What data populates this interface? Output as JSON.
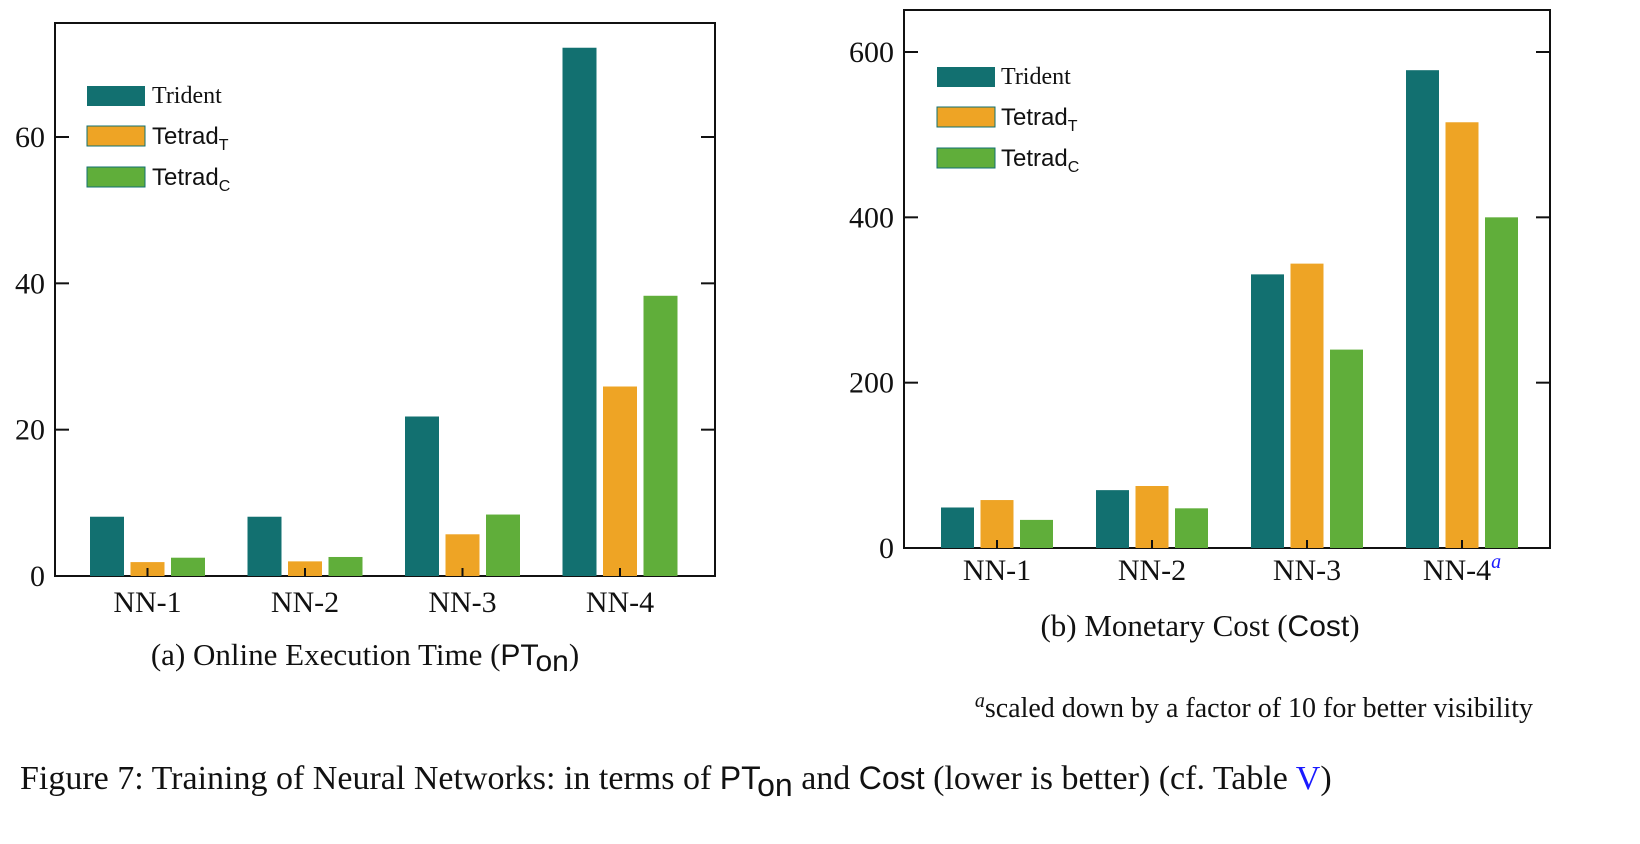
{
  "colors": {
    "Trident": "#127070",
    "TetradT": "#eea425",
    "TetradC": "#60ae3a"
  },
  "chart_data": [
    {
      "type": "bar",
      "categories": [
        "NN-1",
        "NN-2",
        "NN-3",
        "NN-4"
      ],
      "series": [
        {
          "name": "Trident",
          "values": [
            8.1,
            8.1,
            21.8,
            72.2
          ]
        },
        {
          "name": "Tetrad_T",
          "values": [
            1.9,
            2.0,
            5.7,
            25.9
          ]
        },
        {
          "name": "Tetrad_C",
          "values": [
            2.5,
            2.6,
            8.4,
            38.3
          ]
        }
      ],
      "yticks": [
        0,
        20,
        40,
        60
      ],
      "ylim": [
        0,
        75
      ],
      "grid": false,
      "legend": "top-left",
      "caption_prefix": "(a) Online Execution Time (",
      "caption_math": "PT",
      "caption_sub": "on",
      "caption_suffix": ")"
    },
    {
      "type": "bar",
      "categories": [
        "NN-1",
        "NN-2",
        "NN-3",
        "NN-4"
      ],
      "category_superscript": {
        "NN-4": "a"
      },
      "series": [
        {
          "name": "Trident",
          "values": [
            49,
            70,
            331,
            578
          ]
        },
        {
          "name": "Tetrad_T",
          "values": [
            58,
            75,
            344,
            515
          ]
        },
        {
          "name": "Tetrad_C",
          "values": [
            34,
            48,
            240,
            400
          ]
        }
      ],
      "yticks": [
        0,
        200,
        400,
        600
      ],
      "ylim": [
        0,
        650
      ],
      "grid": false,
      "legend": "top-left",
      "caption_prefix": "(b) Monetary Cost (",
      "caption_math": "Cost",
      "caption_suffix": ")"
    }
  ],
  "legend": {
    "trident": "Trident",
    "tetrad": "Tetrad",
    "sub_t": "T",
    "sub_c": "C"
  },
  "footnote": {
    "mark": "a",
    "text": "scaled down by a factor of 10 for better visibility"
  },
  "figure_caption": {
    "label": "Figure 7:",
    "part1": "Training of Neural Networks: in terms of",
    "pt": "PT",
    "pt_sub": "on",
    "and": "and",
    "cost": "Cost",
    "part2": "(lower is better) (cf. Table",
    "table_ref": "V",
    "close": ")"
  }
}
